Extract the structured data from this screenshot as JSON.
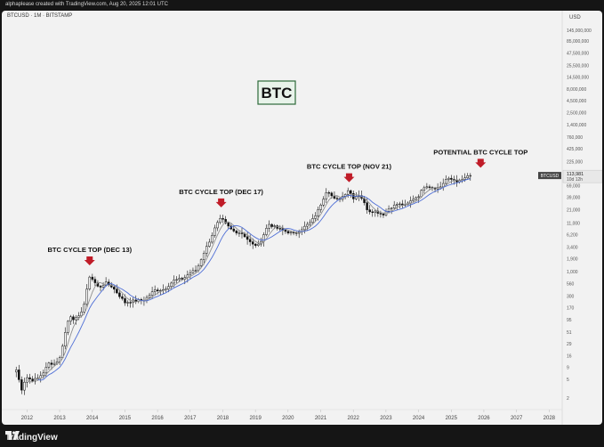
{
  "watermark": "alphaplease created with TradingView.com, Aug 20, 2025 12:01 UTC",
  "symbol_line": "BTCUSD · 1M · BITSTAMP",
  "brand": "TradingView",
  "chart_data": {
    "type": "candlestick",
    "scale": "log",
    "currency_label": "USD",
    "badge_text": "BTC",
    "price_label": "BTCUSD",
    "last_price": "113,981",
    "countdown": "10d 12h",
    "x_ticks": [
      "2012",
      "2013",
      "2014",
      "2015",
      "2016",
      "2017",
      "2018",
      "2019",
      "2020",
      "2021",
      "2022",
      "2023",
      "2024",
      "2025",
      "2026",
      "2027",
      "2028"
    ],
    "y_ticks": [
      "145,000,000",
      "85,000,000",
      "47,500,000",
      "25,500,000",
      "14,500,000",
      "8,000,000",
      "4,500,000",
      "2,500,000",
      "1,400,000",
      "760,000",
      "425,000",
      "225,000",
      "125,000",
      "69,000",
      "39,000",
      "21,000",
      "11,000",
      "6,200",
      "3,400",
      "1,900",
      "1,000",
      "560",
      "300",
      "170",
      "95",
      "51",
      "29",
      "16",
      "9",
      "5",
      "2"
    ],
    "y_tick_values": [
      145000000,
      85000000,
      47500000,
      25500000,
      14500000,
      8000000,
      4500000,
      2500000,
      1400000,
      760000,
      425000,
      225000,
      125000,
      69000,
      39000,
      21000,
      11000,
      6200,
      3400,
      1900,
      1000,
      560,
      300,
      170,
      95,
      51,
      29,
      16,
      9,
      5,
      2
    ],
    "annotations": [
      {
        "text": "BTC CYCLE TOP (DEC 13)",
        "date": 2013.92,
        "price": 1150
      },
      {
        "text": "BTC CYCLE TOP (DEC 17)",
        "date": 2017.95,
        "price": 20000
      },
      {
        "text": "BTC CYCLE TOP (NOV 21)",
        "date": 2021.87,
        "price": 69000
      },
      {
        "text": "POTENTIAL BTC CYCLE TOP",
        "date": 2025.9,
        "price": 140000
      }
    ],
    "anchors": [
      [
        2011.67,
        8
      ],
      [
        2011.75,
        5
      ],
      [
        2011.83,
        3
      ],
      [
        2011.92,
        4.5
      ],
      [
        2012.0,
        5.5
      ],
      [
        2012.15,
        4.8
      ],
      [
        2012.33,
        5.2
      ],
      [
        2012.5,
        7
      ],
      [
        2012.67,
        11
      ],
      [
        2012.85,
        11
      ],
      [
        2013.0,
        14
      ],
      [
        2013.17,
        50
      ],
      [
        2013.3,
        120
      ],
      [
        2013.45,
        95
      ],
      [
        2013.6,
        110
      ],
      [
        2013.75,
        200
      ],
      [
        2013.92,
        800
      ],
      [
        2014.0,
        700
      ],
      [
        2014.2,
        450
      ],
      [
        2014.4,
        580
      ],
      [
        2014.6,
        480
      ],
      [
        2014.8,
        330
      ],
      [
        2015.0,
        220
      ],
      [
        2015.3,
        240
      ],
      [
        2015.6,
        250
      ],
      [
        2015.9,
        400
      ],
      [
        2016.2,
        420
      ],
      [
        2016.5,
        650
      ],
      [
        2016.8,
        720
      ],
      [
        2017.0,
        960
      ],
      [
        2017.2,
        1100
      ],
      [
        2017.4,
        2400
      ],
      [
        2017.6,
        4700
      ],
      [
        2017.8,
        10000
      ],
      [
        2017.95,
        14000
      ],
      [
        2018.1,
        10300
      ],
      [
        2018.3,
        7500
      ],
      [
        2018.6,
        6600
      ],
      [
        2018.9,
        3800
      ],
      [
        2019.1,
        3700
      ],
      [
        2019.4,
        10500
      ],
      [
        2019.7,
        8300
      ],
      [
        2019.95,
        7200
      ],
      [
        2020.2,
        6400
      ],
      [
        2020.5,
        9100
      ],
      [
        2020.7,
        11500
      ],
      [
        2020.9,
        19000
      ],
      [
        2021.05,
        33000
      ],
      [
        2021.2,
        58000
      ],
      [
        2021.4,
        36000
      ],
      [
        2021.55,
        35000
      ],
      [
        2021.7,
        43000
      ],
      [
        2021.85,
        57000
      ],
      [
        2022.0,
        38000
      ],
      [
        2022.2,
        45000
      ],
      [
        2022.45,
        20000
      ],
      [
        2022.7,
        19500
      ],
      [
        2022.9,
        16500
      ],
      [
        2023.1,
        23000
      ],
      [
        2023.35,
        28000
      ],
      [
        2023.6,
        26000
      ],
      [
        2023.85,
        37000
      ],
      [
        2024.0,
        42000
      ],
      [
        2024.2,
        71000
      ],
      [
        2024.45,
        62000
      ],
      [
        2024.65,
        63000
      ],
      [
        2024.85,
        96000
      ],
      [
        2025.0,
        94000
      ],
      [
        2025.25,
        84000
      ],
      [
        2025.45,
        105000
      ],
      [
        2025.63,
        113981
      ]
    ],
    "colors": {
      "background": "#f2f2f2",
      "candle": "#111111",
      "ma_fast": "#8f8f8f",
      "ma_slow": "#4f6fd6",
      "arrow": "#c01c28",
      "badge_border": "#2d6b3a",
      "badge_fill": "#e8f3ea"
    }
  }
}
